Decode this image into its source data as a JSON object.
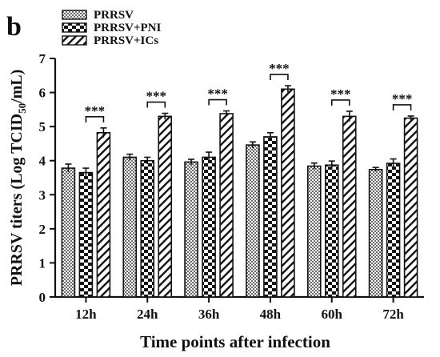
{
  "panel_label": "b",
  "chart_data": {
    "type": "bar",
    "title": "",
    "xlabel": "Time points after infection",
    "ylabel_main": "PRRSV titers (Log TCID",
    "ylabel_sub": "50",
    "ylabel_end": "/mL)",
    "categories": [
      "12h",
      "24h",
      "36h",
      "48h",
      "60h",
      "72h"
    ],
    "ylim": [
      0,
      7
    ],
    "yticks": [
      "0",
      "1",
      "2",
      "3",
      "4",
      "5",
      "6",
      "7"
    ],
    "series": [
      {
        "name": "PRRSV",
        "pattern": "checker",
        "values": [
          3.78,
          4.1,
          3.96,
          4.46,
          3.84,
          3.74
        ],
        "errors": [
          0.12,
          0.09,
          0.08,
          0.09,
          0.09,
          0.06
        ]
      },
      {
        "name": "PRRSV+PNI",
        "pattern": "brick",
        "values": [
          3.65,
          4.0,
          4.1,
          4.7,
          3.87,
          3.92
        ],
        "errors": [
          0.13,
          0.1,
          0.15,
          0.12,
          0.12,
          0.13
        ]
      },
      {
        "name": "PRRSV+ICs",
        "pattern": "hatch",
        "values": [
          4.82,
          5.3,
          5.38,
          6.1,
          5.3,
          5.25
        ],
        "errors": [
          0.14,
          0.09,
          0.08,
          0.1,
          0.15,
          0.06
        ]
      }
    ],
    "significance": [
      "***",
      "***",
      "***",
      "***",
      "***",
      "***"
    ],
    "grid": false,
    "legend_position": "top-left",
    "colors": {
      "ink": "#111111",
      "checker_dark": "#6a6a6a",
      "brick_dark": "#141414"
    }
  }
}
